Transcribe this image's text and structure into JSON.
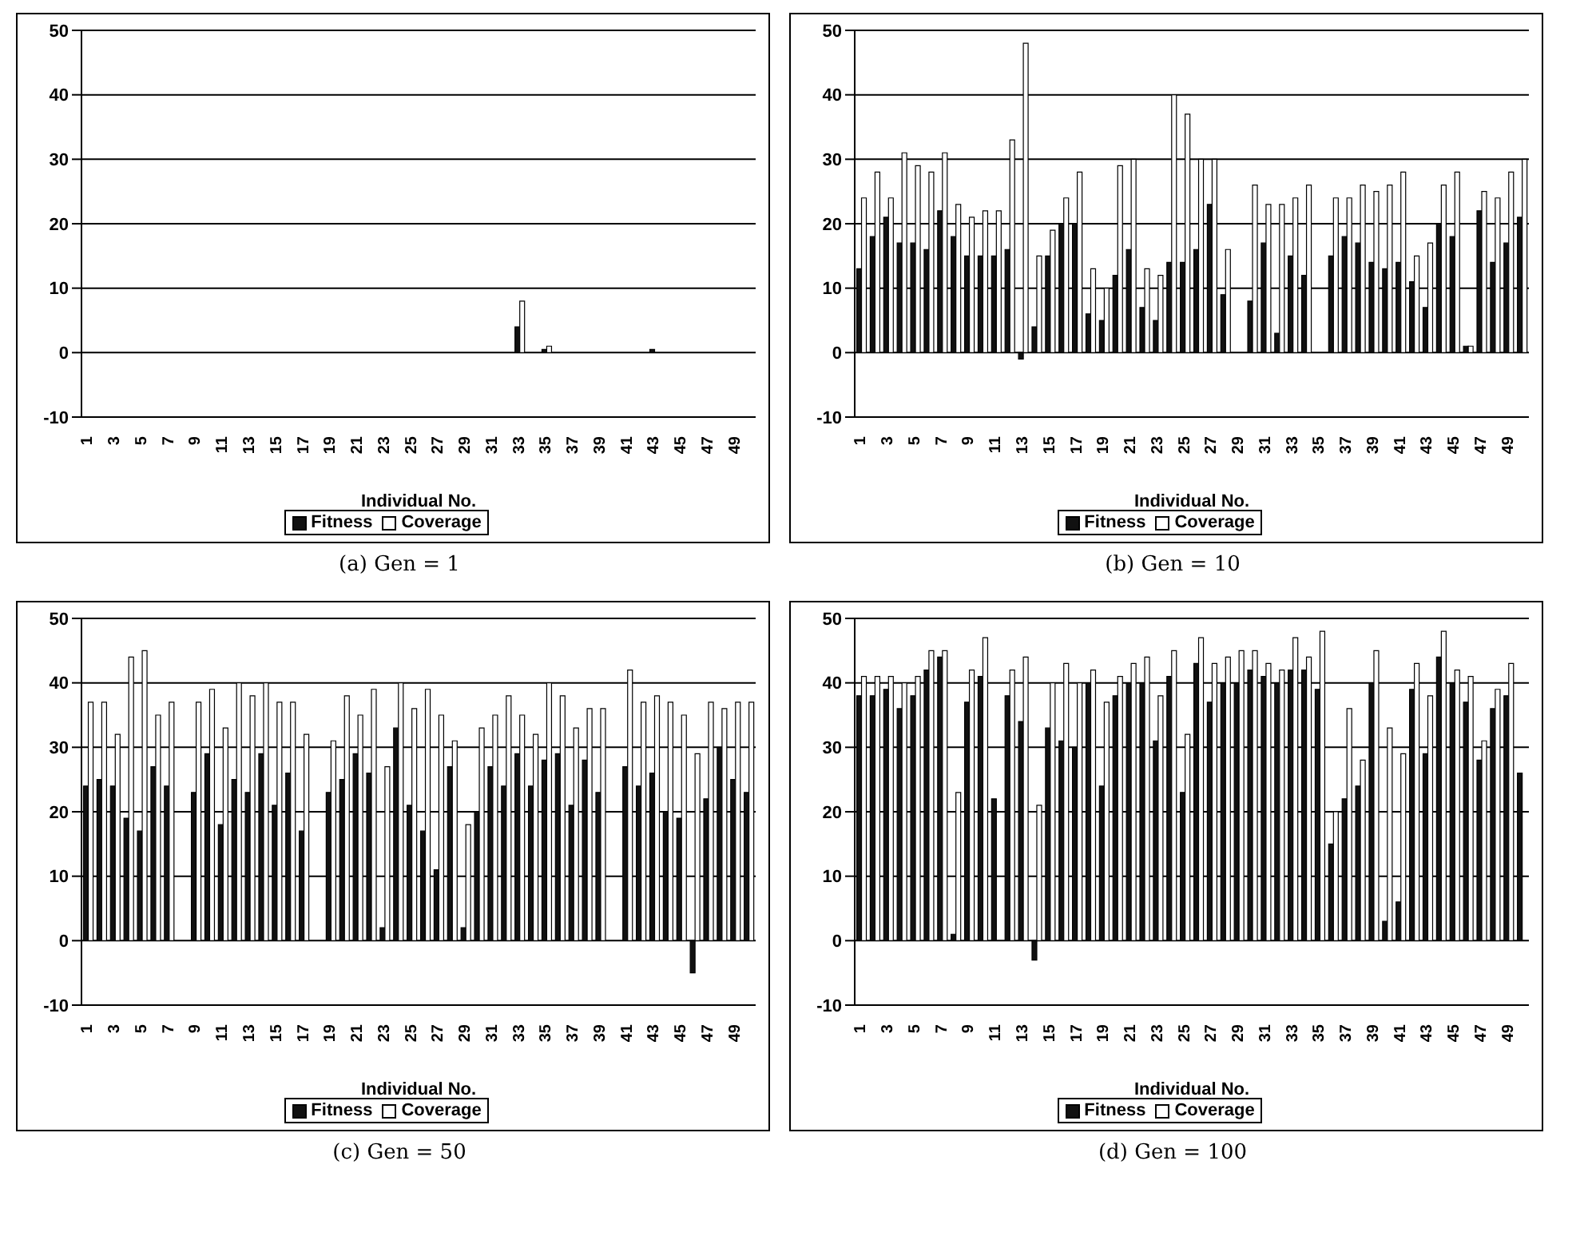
{
  "chart_data": [
    {
      "type": "bar",
      "xlabel": "Individual No.",
      "annotations": [
        "(a)  Gen = 1"
      ],
      "categories": [
        "1",
        null,
        "3",
        null,
        "5",
        null,
        "7",
        null,
        "9",
        null,
        "11",
        null,
        "13",
        null,
        "15",
        null,
        "17",
        null,
        "19",
        null,
        "21",
        null,
        "23",
        null,
        "25",
        null,
        "27",
        null,
        "29",
        null,
        "31",
        null,
        "33",
        null,
        "35",
        null,
        "37",
        null,
        "39",
        null,
        "41",
        null,
        "43",
        null,
        "45",
        null,
        "47",
        null,
        "49",
        null
      ],
      "series": [
        {
          "name": "Fitness",
          "color": "#111111",
          "values": [
            0,
            0,
            0,
            0,
            0,
            0,
            0,
            0,
            0,
            0,
            0,
            0,
            0,
            0,
            0,
            0,
            0,
            0,
            0,
            0,
            0,
            0,
            0,
            0,
            0,
            0,
            0,
            0,
            0,
            0,
            0,
            0,
            4,
            0,
            0.5,
            0,
            0,
            0,
            0,
            0,
            0,
            0,
            0.5,
            0,
            0,
            0,
            0,
            0,
            0,
            0
          ]
        },
        {
          "name": "Coverage",
          "color": "#ffffff",
          "values": [
            0,
            0,
            0,
            0,
            0,
            0,
            0,
            0,
            0,
            0,
            0,
            0,
            0,
            0,
            0,
            0,
            0,
            0,
            0,
            0,
            0,
            0,
            0,
            0,
            0,
            0,
            0,
            0,
            0,
            0,
            0,
            0,
            8,
            0,
            1,
            0,
            0,
            0,
            0,
            0,
            0,
            0,
            0,
            0,
            0,
            0,
            0,
            0,
            0,
            0
          ]
        }
      ],
      "ylim": [
        -10,
        50
      ],
      "yticks": [
        -10,
        0,
        10,
        20,
        30,
        40,
        50
      ],
      "grid": "y",
      "legend": "bottom"
    },
    {
      "type": "bar",
      "xlabel": "Individual No.",
      "annotations": [
        "(b)  Gen = 10"
      ],
      "categories": [
        "1",
        null,
        "3",
        null,
        "5",
        null,
        "7",
        null,
        "9",
        null,
        "11",
        null,
        "13",
        null,
        "15",
        null,
        "17",
        null,
        "19",
        null,
        "21",
        null,
        "23",
        null,
        "25",
        null,
        "27",
        null,
        "29",
        null,
        "31",
        null,
        "33",
        null,
        "35",
        null,
        "37",
        null,
        "39",
        null,
        "41",
        null,
        "43",
        null,
        "45",
        null,
        "47",
        null,
        "49",
        null
      ],
      "series": [
        {
          "name": "Fitness",
          "color": "#111111",
          "values": [
            13,
            18,
            21,
            17,
            17,
            16,
            22,
            18,
            15,
            15,
            15,
            16,
            -1,
            4,
            15,
            20,
            20,
            6,
            5,
            12,
            16,
            7,
            5,
            14,
            14,
            16,
            23,
            9,
            0,
            8,
            17,
            3,
            15,
            12,
            0,
            15,
            18,
            17,
            14,
            13,
            14,
            11,
            7,
            20,
            18,
            1,
            22,
            14,
            17,
            21
          ]
        },
        {
          "name": "Coverage",
          "color": "#ffffff",
          "values": [
            24,
            28,
            24,
            31,
            29,
            28,
            31,
            23,
            21,
            22,
            22,
            33,
            48,
            15,
            19,
            24,
            28,
            13,
            10,
            29,
            30,
            13,
            12,
            40,
            37,
            30,
            30,
            16,
            0,
            26,
            23,
            23,
            24,
            26,
            0,
            24,
            24,
            26,
            25,
            26,
            28,
            15,
            17,
            26,
            28,
            1,
            25,
            24,
            28,
            30
          ]
        }
      ],
      "ylim": [
        -10,
        50
      ],
      "yticks": [
        -10,
        0,
        10,
        20,
        30,
        40,
        50
      ],
      "grid": "y",
      "legend": "bottom"
    },
    {
      "type": "bar",
      "xlabel": "Individual No.",
      "annotations": [
        "(c)  Gen = 50"
      ],
      "categories": [
        "1",
        null,
        "3",
        null,
        "5",
        null,
        "7",
        null,
        "9",
        null,
        "11",
        null,
        "13",
        null,
        "15",
        null,
        "17",
        null,
        "19",
        null,
        "21",
        null,
        "23",
        null,
        "25",
        null,
        "27",
        null,
        "29",
        null,
        "31",
        null,
        "33",
        null,
        "35",
        null,
        "37",
        null,
        "39",
        null,
        "41",
        null,
        "43",
        null,
        "45",
        null,
        "47",
        null,
        "49",
        null
      ],
      "series": [
        {
          "name": "Fitness",
          "color": "#111111",
          "values": [
            24,
            25,
            24,
            19,
            17,
            27,
            24,
            0,
            23,
            29,
            18,
            25,
            23,
            29,
            21,
            26,
            17,
            0,
            23,
            25,
            29,
            26,
            2,
            33,
            21,
            17,
            11,
            27,
            2,
            20,
            27,
            24,
            29,
            24,
            28,
            29,
            21,
            28,
            23,
            0,
            27,
            24,
            26,
            20,
            19,
            -5,
            22,
            30,
            25,
            23
          ]
        },
        {
          "name": "Coverage",
          "color": "#ffffff",
          "values": [
            37,
            37,
            32,
            44,
            45,
            35,
            37,
            0,
            37,
            39,
            33,
            40,
            38,
            40,
            37,
            37,
            32,
            0,
            31,
            38,
            35,
            39,
            27,
            40,
            36,
            39,
            35,
            31,
            18,
            33,
            35,
            38,
            35,
            32,
            40,
            38,
            33,
            36,
            36,
            0,
            42,
            37,
            38,
            37,
            35,
            29,
            37,
            36,
            37,
            37
          ]
        }
      ],
      "ylim": [
        -10,
        50
      ],
      "yticks": [
        -10,
        0,
        10,
        20,
        30,
        40,
        50
      ],
      "grid": "y",
      "legend": "bottom"
    },
    {
      "type": "bar",
      "xlabel": "Individual No.",
      "annotations": [
        "(d)  Gen = 100"
      ],
      "categories": [
        "1",
        null,
        "3",
        null,
        "5",
        null,
        "7",
        null,
        "9",
        null,
        "11",
        null,
        "13",
        null,
        "15",
        null,
        "17",
        null,
        "19",
        null,
        "21",
        null,
        "23",
        null,
        "25",
        null,
        "27",
        null,
        "29",
        null,
        "31",
        null,
        "33",
        null,
        "35",
        null,
        "37",
        null,
        "39",
        null,
        "41",
        null,
        "43",
        null,
        "45",
        null,
        "47",
        null,
        "49",
        null
      ],
      "series": [
        {
          "name": "Fitness",
          "color": "#111111",
          "values": [
            38,
            38,
            39,
            36,
            38,
            42,
            44,
            1,
            37,
            41,
            22,
            38,
            34,
            -3,
            33,
            31,
            30,
            40,
            24,
            38,
            40,
            40,
            31,
            41,
            23,
            43,
            37,
            40,
            40,
            42,
            41,
            40,
            42,
            42,
            39,
            15,
            22,
            24,
            40,
            3,
            6,
            39,
            29,
            44,
            40,
            37,
            28,
            36,
            38,
            26
          ]
        },
        {
          "name": "Coverage",
          "color": "#ffffff",
          "values": [
            41,
            41,
            41,
            40,
            41,
            45,
            45,
            23,
            42,
            47,
            0,
            42,
            44,
            21,
            40,
            43,
            40,
            42,
            37,
            41,
            43,
            44,
            38,
            45,
            32,
            47,
            43,
            44,
            45,
            45,
            43,
            42,
            47,
            44,
            48,
            20,
            36,
            28,
            45,
            33,
            29,
            43,
            38,
            48,
            42,
            41,
            31,
            39,
            43,
            null
          ]
        }
      ],
      "ylim": [
        -10,
        50
      ],
      "yticks": [
        -10,
        0,
        10,
        20,
        30,
        40,
        50
      ],
      "grid": "y",
      "legend": "bottom"
    }
  ]
}
